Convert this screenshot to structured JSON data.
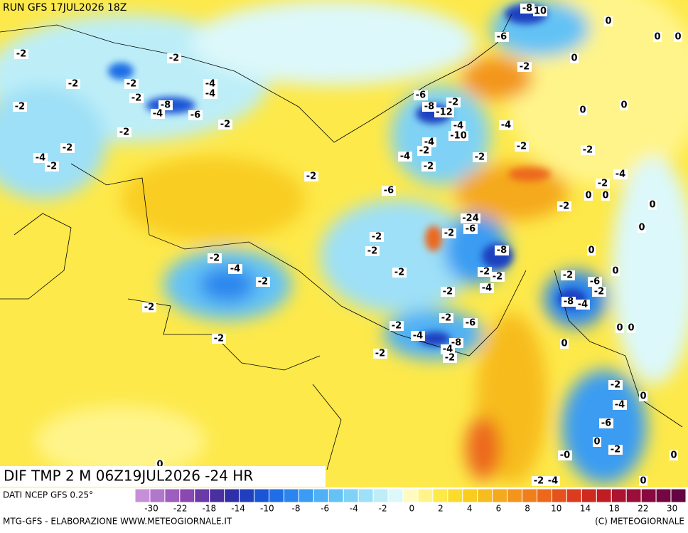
{
  "header": {
    "run": "RUN GFS 17JUL2026 18Z"
  },
  "title": "DIF TMP 2 M 06Z19JUL2026 -24 HR",
  "source": "DATI NCEP GFS 0.25°",
  "footer": {
    "left": "MTG-GFS - ELABORAZIONE WWW.METEOGIORNALE.IT",
    "right": "(C) METEOGIORNALE"
  },
  "colorbar": {
    "labels": [
      -30,
      -22,
      -18,
      -14,
      -10,
      -8,
      -6,
      -4,
      -2,
      0,
      2,
      4,
      6,
      8,
      10,
      14,
      18,
      22,
      30
    ],
    "colors": [
      "#c78fd8",
      "#b276cc",
      "#9d5ebf",
      "#8a48b0",
      "#6a3aa8",
      "#4a2fa0",
      "#2f2fa8",
      "#1f3fbf",
      "#1a55d6",
      "#1f6ee6",
      "#2a86ee",
      "#3a9cf2",
      "#4fb0f5",
      "#64c2f5",
      "#7fd2f5",
      "#9ee0f7",
      "#bdeef8",
      "#dcf8fa",
      "#fffbc0",
      "#fff48a",
      "#fde94a",
      "#fbdc2a",
      "#f9cd20",
      "#f7bc1e",
      "#f5a91d",
      "#f3951c",
      "#f07f1b",
      "#ec681b",
      "#e5521c",
      "#dc3c1e",
      "#cf2a20",
      "#c01c24",
      "#ad1430",
      "#9a0e3a",
      "#88093f",
      "#760642",
      "#650442"
    ]
  },
  "map_labels": [
    "-8",
    "10",
    "0",
    "0",
    "0",
    "-6",
    "-2",
    "-2",
    "0",
    "-2",
    "-2",
    "-2",
    "-4",
    "-2",
    "-4",
    "-6",
    "-2",
    "-2",
    "-8",
    "-8",
    "-12",
    "0",
    "0",
    "-4",
    "-6",
    "-2",
    "-4",
    "-4",
    "-2",
    "-10",
    "-4",
    "-2",
    "-2",
    "-2",
    "-2",
    "-4",
    "-2",
    "-4",
    "-2",
    "-2",
    "-4",
    "-2",
    "-2",
    "-6",
    "0",
    "0",
    "-2",
    "0",
    "-24",
    "-6",
    "-2",
    "-2",
    "0",
    "-2",
    "-8",
    "0",
    "-2",
    "-4",
    "-2",
    "-2",
    "-2",
    "0",
    "-2",
    "-2",
    "-6",
    "-4",
    "-2",
    "-2",
    "-8",
    "-4",
    "-2",
    "-2",
    "-6",
    "0",
    "0",
    "-2",
    "-4",
    "-2",
    "-8",
    "-4",
    "0",
    "-2",
    "-2",
    "-2",
    "0",
    "-4",
    "-6",
    "0",
    "-2",
    "-0",
    "0",
    "-2",
    "-4",
    "0",
    "0"
  ]
}
